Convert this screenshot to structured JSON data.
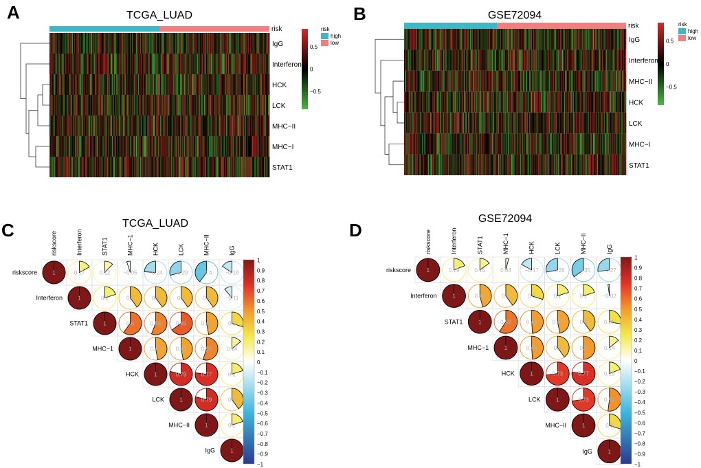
{
  "figure": {
    "panel_labels": [
      "A",
      "B",
      "C",
      "D"
    ],
    "colors": {
      "risk_high": "#40b7c4",
      "risk_low": "#f08080",
      "heat_low": "#49b93f",
      "heat_mid": "#000000",
      "heat_high": "#d62828",
      "corr_neg": "#2b3a8f",
      "corr_neg_mid": "#3fb6dc",
      "corr_zero": "#ffffff",
      "corr_pos_mid1": "#f2e94a",
      "corr_pos_mid2": "#f29a2e",
      "corr_pos_mid3": "#e03127",
      "corr_pos": "#7e1818"
    }
  },
  "chart_data": [
    {
      "type": "heatmap",
      "panel": "A",
      "title": "TCGA_LUAD",
      "annotation_label": "risk",
      "rows": [
        "IgG",
        "Interferon",
        "HCK",
        "LCK",
        "MHC−II",
        "MHC−I",
        "STAT1"
      ],
      "risk_split_fraction": 0.5,
      "legend_ticks": [
        "0.5",
        "0",
        "−0.5"
      ],
      "legend_values": [
        0.5,
        0,
        -0.5
      ],
      "legend_range": [
        -0.9,
        0.9
      ],
      "legend_title": "risk",
      "legend_items": [
        "high",
        "low"
      ],
      "columns": 330
    },
    {
      "type": "heatmap",
      "panel": "B",
      "title": "GSE72094",
      "annotation_label": "risk",
      "rows": [
        "IgG",
        "Interferon",
        "MHC−II",
        "HCK",
        "LCK",
        "MHC−I",
        "STAT1"
      ],
      "risk_split_fraction": 0.42,
      "legend_ticks": [
        "0.5",
        "0",
        "−0.5"
      ],
      "legend_values": [
        0.5,
        0,
        -0.5
      ],
      "legend_range": [
        -0.9,
        0.9
      ],
      "legend_title": "risk",
      "legend_items": [
        "high",
        "low"
      ],
      "columns": 330
    },
    {
      "type": "table",
      "panel": "C",
      "title": "TCGA_LUAD",
      "variables": [
        "riskscore",
        "Interferon",
        "STAT1",
        "MHC−1",
        "HCK",
        "LCK",
        "MHC−II",
        "IgG"
      ],
      "labels": [
        [
          "1",
          "0.17",
          "0.12",
          "−0.05",
          "−0.24",
          "−0.29",
          "−0.4",
          "−0.16"
        ],
        [
          "",
          "1",
          "0.2",
          "0.4",
          "0.4",
          "0.4",
          "0.4",
          "−0.11"
        ],
        [
          "",
          "",
          "1",
          "0.6",
          "0.56",
          "0.65",
          "0.47",
          "0.3"
        ],
        [
          "",
          "",
          "",
          "1",
          "0.47",
          "0.47",
          "0.55",
          "0.14"
        ],
        [
          "",
          "",
          "",
          "",
          "1",
          "0.79",
          "0.77",
          "0.2"
        ],
        [
          "",
          "",
          "",
          "",
          "",
          "1",
          "0.79",
          "0.4"
        ],
        [
          "",
          "",
          "",
          "",
          "",
          "",
          "1",
          "0.2"
        ],
        [
          "",
          "",
          "",
          "",
          "",
          "",
          "",
          "1"
        ]
      ],
      "values": [
        [
          1,
          0.17,
          0.12,
          -0.05,
          -0.24,
          -0.29,
          -0.4,
          -0.16
        ],
        [
          0,
          1,
          0.2,
          0.4,
          0.4,
          0.4,
          0.4,
          -0.11
        ],
        [
          0,
          0,
          1,
          0.6,
          0.56,
          0.65,
          0.47,
          0.3
        ],
        [
          0,
          0,
          0,
          1,
          0.47,
          0.47,
          0.55,
          0.14
        ],
        [
          0,
          0,
          0,
          0,
          1,
          0.79,
          0.77,
          0.2
        ],
        [
          0,
          0,
          0,
          0,
          0,
          1,
          0.79,
          0.4
        ],
        [
          0,
          0,
          0,
          0,
          0,
          0,
          1,
          0.2
        ],
        [
          0,
          0,
          0,
          0,
          0,
          0,
          0,
          1
        ]
      ],
      "colorbar_ticks": [
        "1",
        "0.9",
        "0.8",
        "0.7",
        "0.6",
        "0.5",
        "0.4",
        "0.3",
        "0.2",
        "0.1",
        "0",
        "−0.1",
        "−0.2",
        "−0.3",
        "−0.4",
        "−0.5",
        "−0.6",
        "−0.7",
        "−0.8",
        "−0.9",
        "−1"
      ],
      "colorbar_range": [
        -1,
        1
      ]
    },
    {
      "type": "table",
      "panel": "D",
      "title": "GSE72094",
      "variables": [
        "riskscore",
        "Interferon",
        "STAT1",
        "MHC−1",
        "HCK",
        "LCK",
        "MHC−II",
        "IgG"
      ],
      "labels": [
        [
          "1",
          "0.19",
          "0.15",
          "0.04",
          "−0.17",
          "−0.28",
          "−0.35",
          "−0.27"
        ],
        [
          "",
          "1",
          "0.46",
          "0.4",
          "0.3",
          "0.2",
          "0.2",
          "−0.02"
        ],
        [
          "",
          "",
          "1",
          "0.59",
          "0.49",
          "0.47",
          "0.4",
          "0.28"
        ],
        [
          "",
          "",
          "",
          "1",
          "0.49",
          "0.4",
          "0.5",
          "0.14"
        ],
        [
          "",
          "",
          "",
          "",
          "1",
          "0.73",
          "0.77",
          "0.19"
        ],
        [
          "",
          "",
          "",
          "",
          "",
          "1",
          "0.73",
          "0.52"
        ],
        [
          "",
          "",
          "",
          "",
          "",
          "",
          "1",
          "0.3"
        ],
        [
          "",
          "",
          "",
          "",
          "",
          "",
          "",
          "1"
        ]
      ],
      "values": [
        [
          1,
          0.19,
          0.15,
          0.04,
          -0.17,
          -0.28,
          -0.35,
          -0.27
        ],
        [
          0,
          1,
          0.46,
          0.4,
          0.3,
          0.2,
          0.2,
          -0.02
        ],
        [
          0,
          0,
          1,
          0.59,
          0.49,
          0.47,
          0.4,
          0.28
        ],
        [
          0,
          0,
          0,
          1,
          0.49,
          0.4,
          0.5,
          0.14
        ],
        [
          0,
          0,
          0,
          0,
          1,
          0.73,
          0.77,
          0.19
        ],
        [
          0,
          0,
          0,
          0,
          0,
          1,
          0.73,
          0.52
        ],
        [
          0,
          0,
          0,
          0,
          0,
          0,
          1,
          0.3
        ],
        [
          0,
          0,
          0,
          0,
          0,
          0,
          0,
          1
        ]
      ],
      "colorbar_ticks": [
        "1",
        "0.9",
        "0.8",
        "0.7",
        "0.6",
        "0.5",
        "0.4",
        "0.3",
        "0.2",
        "0.1",
        "0",
        "−0.1",
        "−0.2",
        "−0.3",
        "−0.4",
        "−0.5",
        "−0.6",
        "−0.7",
        "−0.8",
        "−0.9",
        "−1"
      ],
      "colorbar_range": [
        -1,
        1
      ]
    }
  ]
}
